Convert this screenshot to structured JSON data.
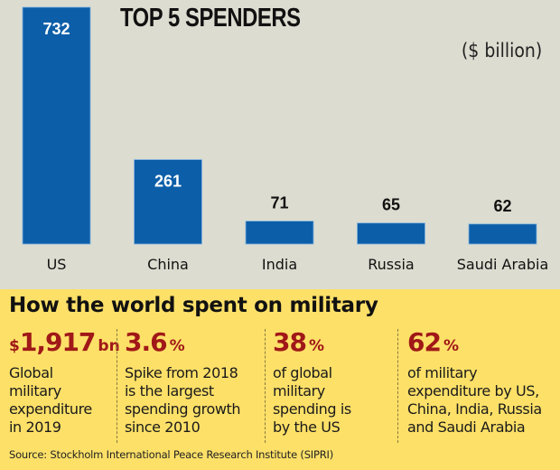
{
  "chart_data": {
    "type": "bar",
    "title": "TOP 5 SPENDERS",
    "unit_label": "($ billion)",
    "categories": [
      "US",
      "China",
      "India",
      "Russia",
      "Saudi Arabia"
    ],
    "values": [
      732,
      261,
      71,
      65,
      62
    ],
    "value_labels": [
      "732",
      "261",
      "71",
      "65",
      "62"
    ],
    "xlabel": "",
    "ylabel": "",
    "ylim": [
      0,
      732
    ],
    "grid": false,
    "legend": "none",
    "bar_color": "#0d5ea8"
  },
  "info": {
    "heading": "How the world spent on military",
    "stats": [
      {
        "prefix": "$",
        "value": "1,917",
        "suffix": "bn",
        "lines": [
          "Global",
          "military",
          "expenditure",
          "in 2019"
        ]
      },
      {
        "prefix": "",
        "value": "3.6",
        "suffix": "%",
        "lines": [
          "Spike from 2018",
          "is the largest",
          "spending growth",
          "since 2010"
        ]
      },
      {
        "prefix": "",
        "value": "38",
        "suffix": "%",
        "lines": [
          "of global",
          "military",
          "spending is",
          "by the US"
        ]
      },
      {
        "prefix": "",
        "value": "62",
        "suffix": "%",
        "lines": [
          "of military",
          "expenditure by US,",
          "China, India, Russia",
          "and Saudi Arabia"
        ]
      }
    ],
    "source": "Source: Stockholm International Peace Research Institute (SIPRI)"
  },
  "colors": {
    "background": "#dcdcd0",
    "panel": "#fde068",
    "accent_red": "#a01818",
    "bar": "#0d5ea8"
  }
}
